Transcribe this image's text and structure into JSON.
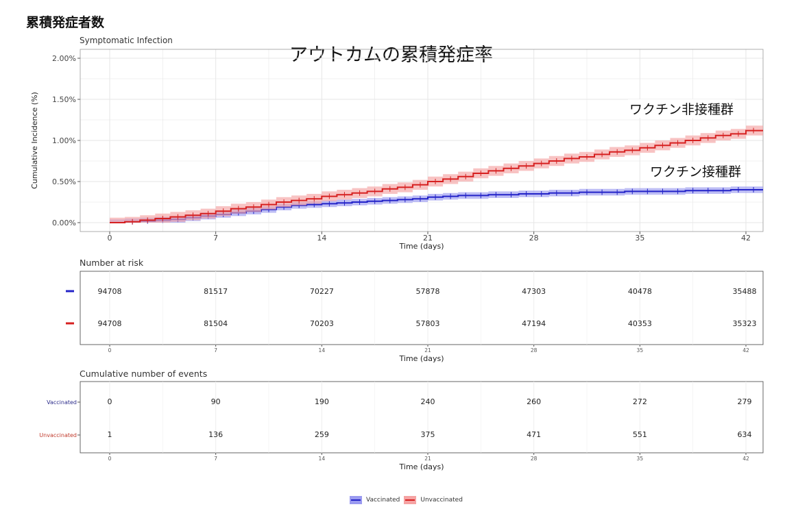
{
  "page_title": "累積発症者数",
  "chart_title": "アウトカムの累積発症率",
  "subplot_title": "Symptomatic Infection",
  "callouts": {
    "unvaccinated": "ワクチン非接種群",
    "vaccinated": "ワクチン接種群"
  },
  "colors": {
    "vaccinated": "#2323c8",
    "vaccinated_band": "#9a9af0",
    "unvaccinated": "#d62020",
    "unvaccinated_band": "#f5a3a3",
    "grid": "#e6e6e6",
    "panel_border": "#555555"
  },
  "chart_data": {
    "type": "line",
    "xlabel": "Time (days)",
    "ylabel": "Cumulative Incidence (%)",
    "x_ticks": [
      0,
      7,
      14,
      21,
      28,
      35,
      42
    ],
    "y_ticks": [
      "0.00%",
      "0.50%",
      "1.00%",
      "1.50%",
      "2.00%"
    ],
    "xlim": [
      0,
      42
    ],
    "ylim": [
      0,
      2.0
    ],
    "grid": true,
    "series": [
      {
        "name": "Vaccinated",
        "x": [
          0,
          1,
          2,
          3,
          4,
          5,
          6,
          7,
          8,
          9,
          10,
          11,
          12,
          13,
          14,
          15,
          16,
          17,
          18,
          19,
          20,
          21,
          22,
          23,
          24,
          25,
          26,
          27,
          28,
          29,
          30,
          31,
          32,
          33,
          34,
          35,
          36,
          37,
          38,
          39,
          40,
          41,
          42
        ],
        "y": [
          0,
          0.01,
          0.02,
          0.03,
          0.04,
          0.06,
          0.08,
          0.1,
          0.12,
          0.14,
          0.16,
          0.19,
          0.21,
          0.22,
          0.23,
          0.24,
          0.25,
          0.26,
          0.27,
          0.28,
          0.29,
          0.31,
          0.32,
          0.33,
          0.33,
          0.34,
          0.34,
          0.35,
          0.35,
          0.36,
          0.36,
          0.37,
          0.37,
          0.37,
          0.38,
          0.38,
          0.38,
          0.38,
          0.39,
          0.39,
          0.39,
          0.4,
          0.4
        ],
        "band": 0.04
      },
      {
        "name": "Unvaccinated",
        "x": [
          0,
          1,
          2,
          3,
          4,
          5,
          6,
          7,
          8,
          9,
          10,
          11,
          12,
          13,
          14,
          15,
          16,
          17,
          18,
          19,
          20,
          21,
          22,
          23,
          24,
          25,
          26,
          27,
          28,
          29,
          30,
          31,
          32,
          33,
          34,
          35,
          36,
          37,
          38,
          39,
          40,
          41,
          42
        ],
        "y": [
          0,
          0.01,
          0.03,
          0.05,
          0.07,
          0.09,
          0.11,
          0.14,
          0.17,
          0.19,
          0.22,
          0.25,
          0.27,
          0.29,
          0.32,
          0.34,
          0.36,
          0.38,
          0.41,
          0.43,
          0.46,
          0.5,
          0.53,
          0.56,
          0.6,
          0.63,
          0.66,
          0.69,
          0.72,
          0.75,
          0.78,
          0.8,
          0.83,
          0.86,
          0.88,
          0.91,
          0.94,
          0.97,
          1.0,
          1.03,
          1.06,
          1.08,
          1.12
        ],
        "band": 0.06
      }
    ]
  },
  "risk_table": {
    "title": "Number at risk",
    "rows": [
      {
        "group": "Vaccinated",
        "values": [
          "94708",
          "81517",
          "70227",
          "57878",
          "47303",
          "40478",
          "35488"
        ]
      },
      {
        "group": "Unvaccinated",
        "values": [
          "94708",
          "81504",
          "70203",
          "57803",
          "47194",
          "40353",
          "35323"
        ]
      }
    ],
    "x_ticks": [
      "0",
      "7",
      "14",
      "21",
      "28",
      "35",
      "42"
    ],
    "xlabel": "Time (days)"
  },
  "events_table": {
    "title": "Cumulative number of events",
    "rows": [
      {
        "group": "Vaccinated",
        "values": [
          "0",
          "90",
          "190",
          "240",
          "260",
          "272",
          "279"
        ]
      },
      {
        "group": "Unvaccinated",
        "values": [
          "1",
          "136",
          "259",
          "375",
          "471",
          "551",
          "634"
        ]
      }
    ],
    "x_ticks": [
      "0",
      "7",
      "14",
      "21",
      "28",
      "35",
      "42"
    ],
    "xlabel": "Time (days)"
  },
  "legend": [
    "Vaccinated",
    "Unvaccinated"
  ]
}
